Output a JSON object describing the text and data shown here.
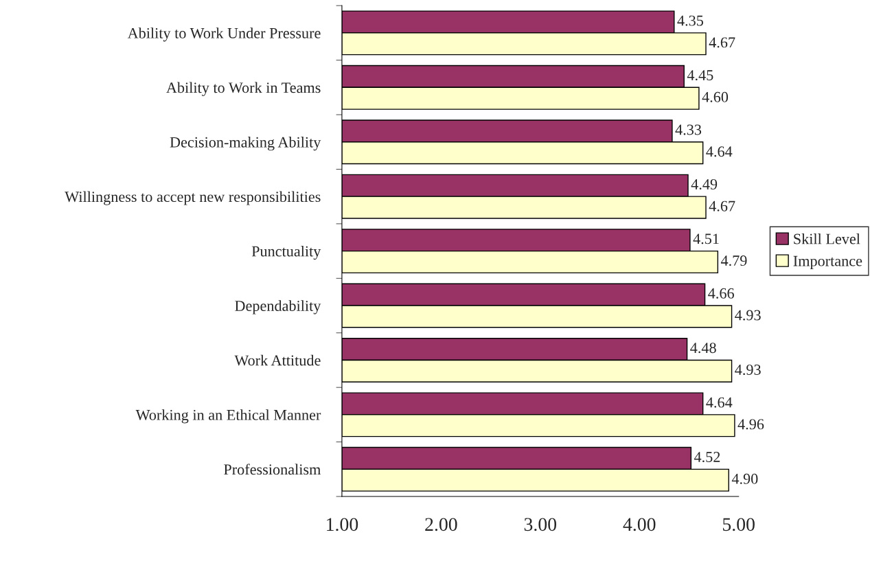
{
  "chart_data": {
    "type": "bar",
    "orientation": "horizontal",
    "categories": [
      "Ability to Work Under Pressure",
      "Ability to Work in Teams",
      "Decision-making Ability",
      "Willingness to accept new responsibilities",
      "Punctuality",
      "Dependability",
      "Work Attitude",
      "Working in an Ethical Manner",
      "Professionalism"
    ],
    "series": [
      {
        "name": "Skill Level",
        "color": "#993366",
        "values": [
          4.35,
          4.45,
          4.33,
          4.49,
          4.51,
          4.66,
          4.48,
          4.64,
          4.52
        ],
        "value_labels": [
          "4.35",
          "4.45",
          "4.33",
          "4.49",
          "4.51",
          "4.66",
          "4.48",
          "4.64",
          "4.52"
        ]
      },
      {
        "name": "Importance",
        "color": "#ffffcc",
        "values": [
          4.67,
          4.6,
          4.64,
          4.67,
          4.79,
          4.93,
          4.93,
          4.96,
          4.9
        ],
        "value_labels": [
          "4.67",
          "4.60",
          "4.64",
          "4.67",
          "4.79",
          "4.93",
          "4.93",
          "4.96",
          "4.90"
        ]
      }
    ],
    "xlim": [
      1,
      5
    ],
    "xticks": [
      {
        "value": 1,
        "label": "1.00"
      },
      {
        "value": 2,
        "label": "2.00"
      },
      {
        "value": 3,
        "label": "3.00"
      },
      {
        "value": 4,
        "label": "4.00"
      },
      {
        "value": 5,
        "label": "5.00"
      }
    ],
    "legend": "right",
    "grid": false
  }
}
